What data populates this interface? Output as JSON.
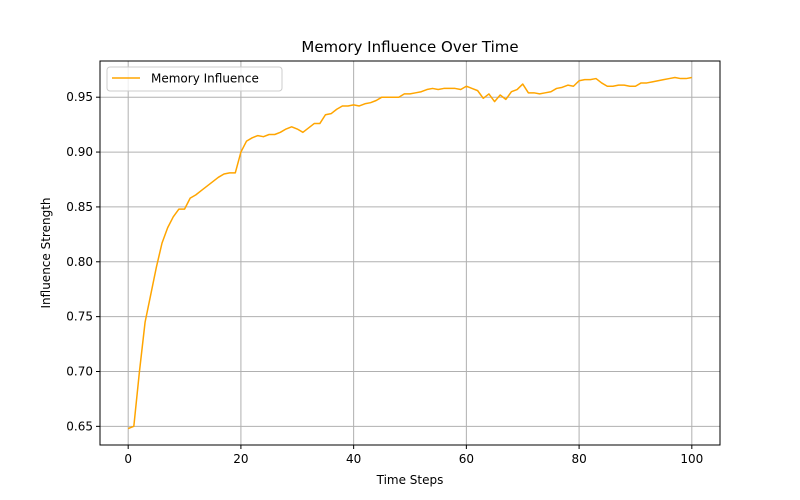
{
  "chart_data": {
    "type": "line",
    "title": "Memory Influence Over Time",
    "xlabel": "Time Steps",
    "ylabel": "Influence Strength",
    "xlim": [
      -5,
      105
    ],
    "ylim": [
      0.633,
      0.983
    ],
    "xticks": [
      0,
      20,
      40,
      60,
      80,
      100
    ],
    "yticks": [
      0.65,
      0.7,
      0.75,
      0.8,
      0.85,
      0.9,
      0.95
    ],
    "ytick_labels": [
      "0.65",
      "0.70",
      "0.75",
      "0.80",
      "0.85",
      "0.90",
      "0.95"
    ],
    "grid": true,
    "legend_position": "top-left",
    "series": [
      {
        "name": "Memory Influence",
        "color": "#ffa500",
        "x": [
          0,
          1,
          2,
          3,
          4,
          5,
          6,
          7,
          8,
          9,
          10,
          11,
          12,
          13,
          14,
          15,
          16,
          17,
          18,
          19,
          20,
          21,
          22,
          23,
          24,
          25,
          26,
          27,
          28,
          29,
          30,
          31,
          32,
          33,
          34,
          35,
          36,
          37,
          38,
          39,
          40,
          41,
          42,
          43,
          44,
          45,
          46,
          47,
          48,
          49,
          50,
          51,
          52,
          53,
          54,
          55,
          56,
          57,
          58,
          59,
          60,
          61,
          62,
          63,
          64,
          65,
          66,
          67,
          68,
          69,
          70,
          71,
          72,
          73,
          74,
          75,
          76,
          77,
          78,
          79,
          80,
          81,
          82,
          83,
          84,
          85,
          86,
          87,
          88,
          89,
          90,
          91,
          92,
          93,
          94,
          95,
          96,
          97,
          98,
          99,
          100
        ],
        "values": [
          0.648,
          0.65,
          0.7,
          0.745,
          0.77,
          0.795,
          0.817,
          0.831,
          0.841,
          0.848,
          0.848,
          0.858,
          0.861,
          0.865,
          0.869,
          0.873,
          0.877,
          0.88,
          0.881,
          0.881,
          0.9,
          0.91,
          0.913,
          0.915,
          0.914,
          0.916,
          0.916,
          0.918,
          0.921,
          0.923,
          0.921,
          0.918,
          0.922,
          0.926,
          0.926,
          0.934,
          0.935,
          0.939,
          0.942,
          0.942,
          0.943,
          0.942,
          0.944,
          0.945,
          0.947,
          0.95,
          0.95,
          0.95,
          0.95,
          0.953,
          0.953,
          0.954,
          0.955,
          0.957,
          0.958,
          0.957,
          0.958,
          0.958,
          0.958,
          0.957,
          0.96,
          0.958,
          0.956,
          0.949,
          0.953,
          0.946,
          0.952,
          0.948,
          0.955,
          0.957,
          0.962,
          0.954,
          0.954,
          0.953,
          0.954,
          0.955,
          0.958,
          0.959,
          0.961,
          0.96,
          0.965,
          0.966,
          0.966,
          0.967,
          0.963,
          0.96,
          0.96,
          0.961,
          0.961,
          0.96,
          0.96,
          0.963,
          0.963,
          0.964,
          0.965,
          0.966,
          0.967,
          0.968,
          0.967,
          0.967,
          0.968
        ]
      }
    ]
  }
}
